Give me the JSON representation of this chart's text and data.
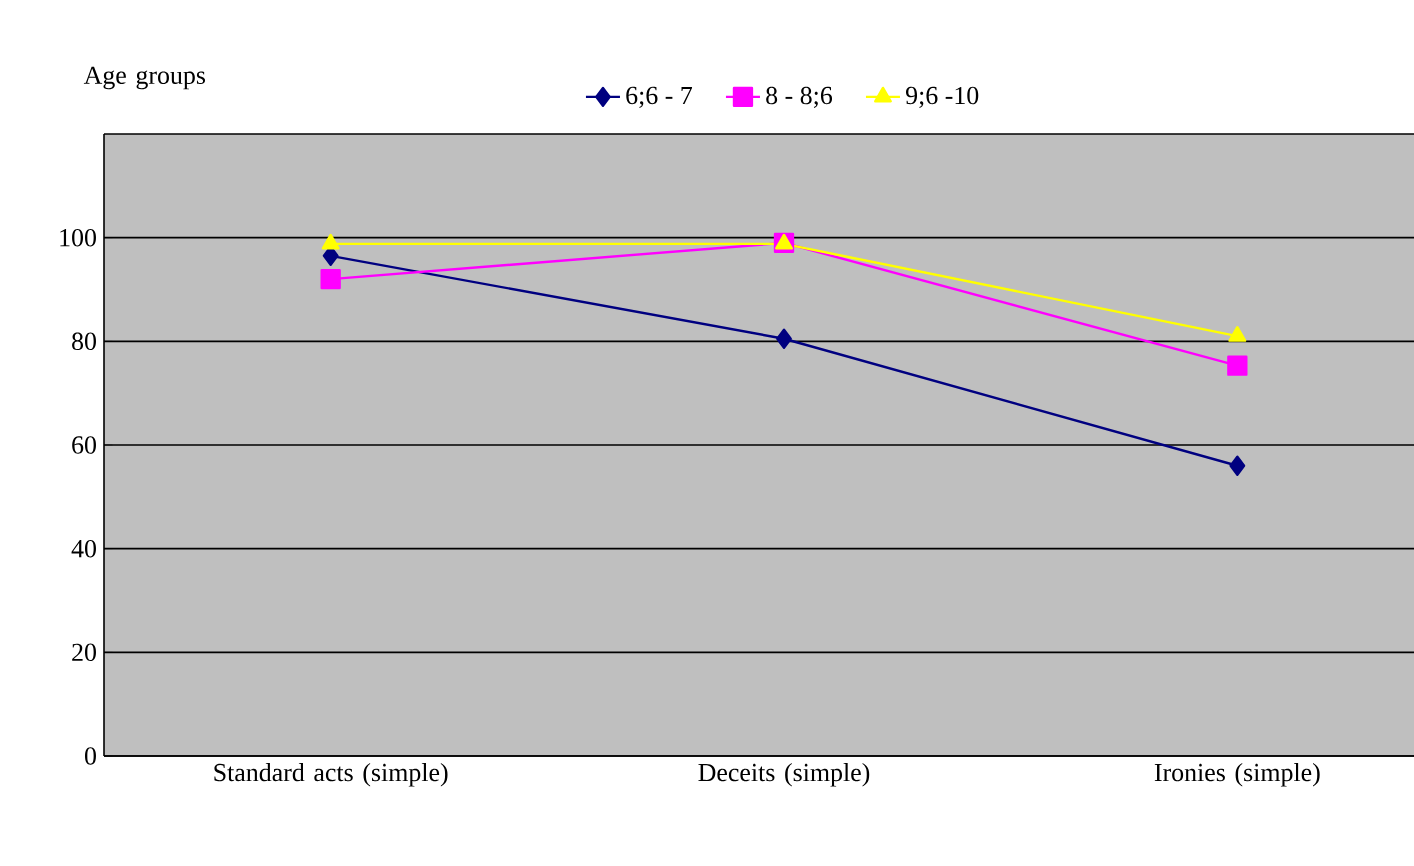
{
  "chart_data": {
    "type": "line",
    "legend_title": "Age groups",
    "legend": "top",
    "categories": [
      "Standard acts (simple)",
      "Deceits (simple)",
      "Ironies (simple)"
    ],
    "series": [
      {
        "name": "6;6  -  7",
        "color": "#000080",
        "marker": "diamond",
        "values": [
          96.5,
          80.5,
          56
        ]
      },
      {
        "name": "8  -  8;6",
        "color": "#ff00ff",
        "marker": "square",
        "values": [
          92,
          99,
          75.3
        ]
      },
      {
        "name": "9;6  -10",
        "color": "#ffff00",
        "marker": "triangle",
        "values": [
          98.8,
          98.8,
          81
        ]
      }
    ],
    "ylim": [
      0,
      120
    ],
    "yticks": [
      0,
      20,
      40,
      60,
      80,
      100
    ],
    "grid": "y"
  }
}
